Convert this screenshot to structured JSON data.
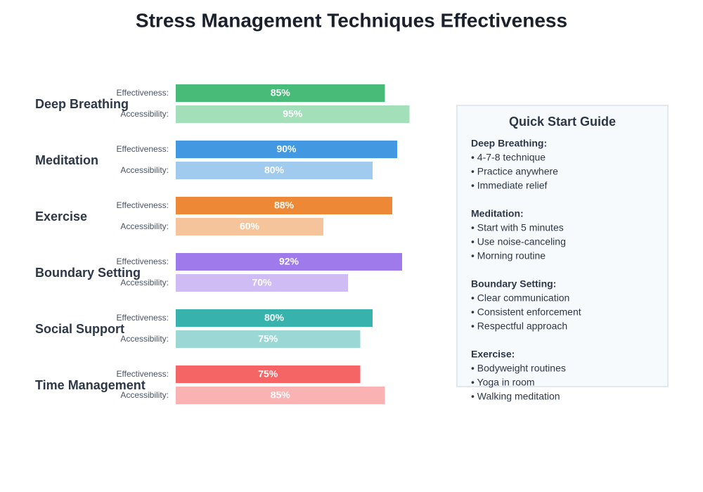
{
  "chart_data": {
    "type": "bar",
    "title": "Stress Management Techniques Effectiveness",
    "categories": [
      "Deep Breathing",
      "Meditation",
      "Exercise",
      "Boundary Setting",
      "Social Support",
      "Time Management"
    ],
    "xlim": [
      0,
      100
    ],
    "series": [
      {
        "name": "Effectiveness:",
        "colors": [
          "#48bb78",
          "#4299e1",
          "#ed8936",
          "#9f7aea",
          "#38b2ac",
          "#f56565"
        ],
        "values": [
          85,
          90,
          88,
          92,
          80,
          75
        ],
        "value_labels": [
          "85%",
          "90%",
          "88%",
          "92%",
          "80%",
          "75%"
        ]
      },
      {
        "name": "Accessibility:",
        "colors": [
          "#a3dfb9",
          "#a0cbef",
          "#f6c49b",
          "#cfbcf5",
          "#9bd8d5",
          "#fab2b2"
        ],
        "values": [
          95,
          80,
          60,
          70,
          75,
          85
        ],
        "value_labels": [
          "95%",
          "80%",
          "60%",
          "70%",
          "75%",
          "85%"
        ]
      }
    ]
  },
  "guide": {
    "title": "Quick Start Guide",
    "sections": [
      {
        "heading": "Deep Breathing:",
        "items": [
          "• 4-7-8 technique",
          "• Practice anywhere",
          "• Immediate relief"
        ]
      },
      {
        "heading": "Meditation:",
        "items": [
          "• Start with 5 minutes",
          "• Use noise-canceling",
          "• Morning routine"
        ]
      },
      {
        "heading": "Boundary Setting:",
        "items": [
          "• Clear communication",
          "• Consistent enforcement",
          "• Respectful approach"
        ]
      },
      {
        "heading": "Exercise:",
        "items": [
          "• Bodyweight routines",
          "• Yoga in room",
          "• Walking meditation"
        ]
      }
    ]
  }
}
